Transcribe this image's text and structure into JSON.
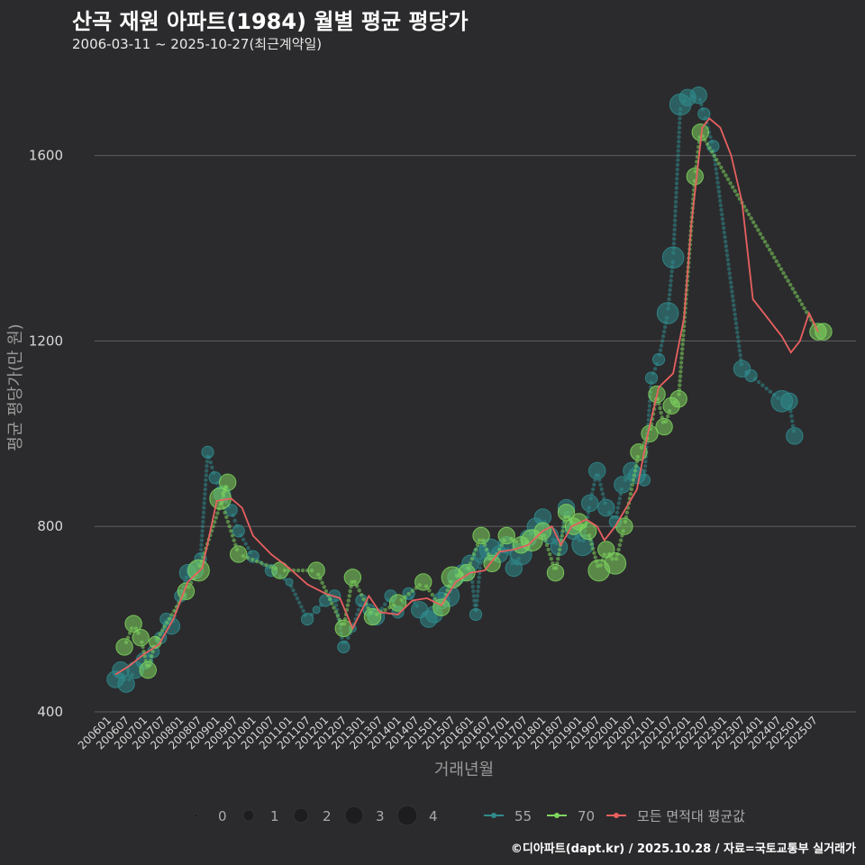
{
  "header": {
    "title": "산곡 재원 아파트(1984) 월별 평균 평당가",
    "subtitle": "2006-03-11 ~ 2025-10-27(최근계약일)"
  },
  "footer": "©디아파트(dapt.kr) / 2025.10.28 / 자료=국토교통부 실거래가",
  "colors": {
    "s55": "#2f8a8c",
    "s70": "#7fd65e",
    "avg": "#e8605f",
    "bg": "#2b2b2d"
  },
  "chart_data": {
    "type": "scatter",
    "title": "산곡 재원 아파트(1984) 월별 평균 평당가",
    "xlabel": "거래년월",
    "ylabel": "평균 평당가(만 원)",
    "ylim": [
      400,
      1780
    ],
    "yticks": [
      400,
      800,
      1200,
      1600
    ],
    "xlim": [
      2006.0,
      2025.9
    ],
    "xticks": [
      "200601",
      "200607",
      "200701",
      "200707",
      "200801",
      "200807",
      "200901",
      "200907",
      "201001",
      "201007",
      "201101",
      "201107",
      "201201",
      "201207",
      "201301",
      "201307",
      "201401",
      "201407",
      "201501",
      "201507",
      "201601",
      "201607",
      "201701",
      "201707",
      "201801",
      "201807",
      "201901",
      "201907",
      "202001",
      "202007",
      "202101",
      "202107",
      "202201",
      "202207",
      "202301",
      "202307",
      "202401",
      "202407",
      "202501",
      "202507"
    ],
    "legend_size": {
      "title": "",
      "values": [
        "0",
        "1",
        "2",
        "3",
        "4"
      ]
    },
    "legend_series": [
      "55",
      "70",
      "모든 면적대 평균값"
    ],
    "series": [
      {
        "name": "55",
        "points": [
          [
            2006.2,
            470,
            2
          ],
          [
            2006.35,
            490,
            2
          ],
          [
            2006.5,
            460,
            2
          ],
          [
            2006.75,
            490,
            2
          ],
          [
            2007.0,
            510,
            2
          ],
          [
            2007.25,
            530,
            1
          ],
          [
            2007.45,
            560,
            1
          ],
          [
            2007.6,
            600,
            1
          ],
          [
            2007.75,
            585,
            2
          ],
          [
            2008.0,
            650,
            1
          ],
          [
            2008.2,
            700,
            2
          ],
          [
            2008.4,
            705,
            2
          ],
          [
            2008.55,
            730,
            1
          ],
          [
            2008.75,
            960,
            1
          ],
          [
            2008.95,
            905,
            1
          ],
          [
            2009.15,
            870,
            2
          ],
          [
            2009.4,
            835,
            1
          ],
          [
            2009.6,
            790,
            1
          ],
          [
            2010.0,
            735,
            1
          ],
          [
            2010.5,
            705,
            1
          ],
          [
            2011.0,
            680,
            0
          ],
          [
            2011.5,
            600,
            1
          ],
          [
            2011.75,
            620,
            0
          ],
          [
            2012.0,
            640,
            1
          ],
          [
            2012.25,
            650,
            1
          ],
          [
            2012.5,
            540,
            1
          ],
          [
            2012.75,
            580,
            0
          ],
          [
            2013.0,
            640,
            1
          ],
          [
            2013.2,
            620,
            1
          ],
          [
            2013.4,
            605,
            2
          ],
          [
            2013.8,
            650,
            1
          ],
          [
            2014.0,
            615,
            1
          ],
          [
            2014.3,
            655,
            1
          ],
          [
            2014.6,
            620,
            2
          ],
          [
            2014.85,
            600,
            2
          ],
          [
            2015.0,
            610,
            2
          ],
          [
            2015.2,
            640,
            2
          ],
          [
            2015.4,
            650,
            3
          ],
          [
            2015.6,
            690,
            2
          ],
          [
            2015.8,
            700,
            2
          ],
          [
            2016.0,
            720,
            2
          ],
          [
            2016.15,
            610,
            1
          ],
          [
            2016.3,
            740,
            2
          ],
          [
            2016.55,
            750,
            3
          ],
          [
            2016.8,
            740,
            2
          ],
          [
            2017.0,
            760,
            2
          ],
          [
            2017.2,
            710,
            2
          ],
          [
            2017.4,
            740,
            3
          ],
          [
            2017.6,
            775,
            2
          ],
          [
            2017.8,
            800,
            2
          ],
          [
            2018.0,
            820,
            2
          ],
          [
            2018.2,
            780,
            2
          ],
          [
            2018.45,
            755,
            2
          ],
          [
            2018.65,
            840,
            2
          ],
          [
            2018.85,
            790,
            2
          ],
          [
            2019.1,
            760,
            3
          ],
          [
            2019.3,
            850,
            2
          ],
          [
            2019.5,
            920,
            2
          ],
          [
            2019.75,
            840,
            2
          ],
          [
            2020.0,
            810,
            1
          ],
          [
            2020.2,
            890,
            2
          ],
          [
            2020.45,
            920,
            2
          ],
          [
            2020.6,
            910,
            2
          ],
          [
            2020.8,
            900,
            1
          ],
          [
            2021.0,
            1120,
            1
          ],
          [
            2021.2,
            1160,
            1
          ],
          [
            2021.45,
            1260,
            3
          ],
          [
            2021.6,
            1380,
            3
          ],
          [
            2021.8,
            1710,
            3
          ],
          [
            2022.0,
            1725,
            2
          ],
          [
            2022.3,
            1730,
            2
          ],
          [
            2022.45,
            1690,
            1
          ],
          [
            2022.7,
            1620,
            1
          ],
          [
            2023.5,
            1140,
            2
          ],
          [
            2023.75,
            1125,
            1
          ],
          [
            2024.6,
            1070,
            3
          ],
          [
            2024.8,
            1070,
            2
          ],
          [
            2024.95,
            995,
            2
          ]
        ]
      },
      {
        "name": "70",
        "points": [
          [
            2006.45,
            540,
            2
          ],
          [
            2006.7,
            590,
            2
          ],
          [
            2006.9,
            560,
            2
          ],
          [
            2007.1,
            490,
            2
          ],
          [
            2007.3,
            550,
            1
          ],
          [
            2008.15,
            660,
            2
          ],
          [
            2008.5,
            705,
            3
          ],
          [
            2009.3,
            895,
            2
          ],
          [
            2009.1,
            860,
            3
          ],
          [
            2009.6,
            740,
            2
          ],
          [
            2010.75,
            705,
            2
          ],
          [
            2011.75,
            705,
            2
          ],
          [
            2012.5,
            580,
            2
          ],
          [
            2012.75,
            690,
            2
          ],
          [
            2013.3,
            605,
            2
          ],
          [
            2014.0,
            635,
            2
          ],
          [
            2014.7,
            680,
            2
          ],
          [
            2015.2,
            625,
            2
          ],
          [
            2015.5,
            690,
            3
          ],
          [
            2015.9,
            700,
            2
          ],
          [
            2016.3,
            780,
            2
          ],
          [
            2016.6,
            720,
            2
          ],
          [
            2017.0,
            780,
            2
          ],
          [
            2017.4,
            760,
            2
          ],
          [
            2017.7,
            770,
            3
          ],
          [
            2018.0,
            790,
            2
          ],
          [
            2018.35,
            700,
            2
          ],
          [
            2018.65,
            830,
            2
          ],
          [
            2018.85,
            800,
            2
          ],
          [
            2019.0,
            810,
            2
          ],
          [
            2019.25,
            790,
            2
          ],
          [
            2019.55,
            705,
            3
          ],
          [
            2019.75,
            750,
            2
          ],
          [
            2020.0,
            720,
            3
          ],
          [
            2020.25,
            800,
            2
          ],
          [
            2020.65,
            960,
            2
          ],
          [
            2020.95,
            1000,
            2
          ],
          [
            2021.15,
            1085,
            2
          ],
          [
            2021.35,
            1015,
            2
          ],
          [
            2021.55,
            1060,
            2
          ],
          [
            2021.75,
            1075,
            2
          ],
          [
            2022.2,
            1555,
            2
          ],
          [
            2022.35,
            1650,
            2
          ],
          [
            2025.6,
            1220,
            2
          ],
          [
            2025.75,
            1220,
            2
          ]
        ]
      }
    ],
    "avg_line": [
      [
        2006.2,
        480
      ],
      [
        2006.6,
        500
      ],
      [
        2007.0,
        525
      ],
      [
        2007.4,
        545
      ],
      [
        2007.8,
        600
      ],
      [
        2008.2,
        680
      ],
      [
        2008.6,
        710
      ],
      [
        2009.0,
        855
      ],
      [
        2009.4,
        860
      ],
      [
        2009.7,
        840
      ],
      [
        2010.0,
        780
      ],
      [
        2010.5,
        740
      ],
      [
        2011.0,
        710
      ],
      [
        2011.5,
        675
      ],
      [
        2012.0,
        655
      ],
      [
        2012.4,
        645
      ],
      [
        2012.75,
        580
      ],
      [
        2013.2,
        650
      ],
      [
        2013.5,
        615
      ],
      [
        2014.0,
        610
      ],
      [
        2014.4,
        640
      ],
      [
        2014.8,
        645
      ],
      [
        2015.2,
        630
      ],
      [
        2015.6,
        680
      ],
      [
        2016.0,
        700
      ],
      [
        2016.4,
        705
      ],
      [
        2016.8,
        745
      ],
      [
        2017.2,
        750
      ],
      [
        2017.6,
        760
      ],
      [
        2018.0,
        790
      ],
      [
        2018.25,
        800
      ],
      [
        2018.5,
        760
      ],
      [
        2018.8,
        800
      ],
      [
        2019.2,
        815
      ],
      [
        2019.5,
        800
      ],
      [
        2019.7,
        770
      ],
      [
        2020.0,
        800
      ],
      [
        2020.3,
        840
      ],
      [
        2020.6,
        880
      ],
      [
        2020.9,
        1000
      ],
      [
        2021.2,
        1100
      ],
      [
        2021.6,
        1130
      ],
      [
        2021.9,
        1250
      ],
      [
        2022.1,
        1450
      ],
      [
        2022.4,
        1660
      ],
      [
        2022.6,
        1680
      ],
      [
        2022.9,
        1660
      ],
      [
        2023.2,
        1600
      ],
      [
        2023.5,
        1500
      ],
      [
        2023.8,
        1290
      ],
      [
        2024.2,
        1250
      ],
      [
        2024.6,
        1210
      ],
      [
        2024.85,
        1175
      ],
      [
        2025.1,
        1200
      ],
      [
        2025.35,
        1260
      ],
      [
        2025.6,
        1220
      ]
    ]
  }
}
